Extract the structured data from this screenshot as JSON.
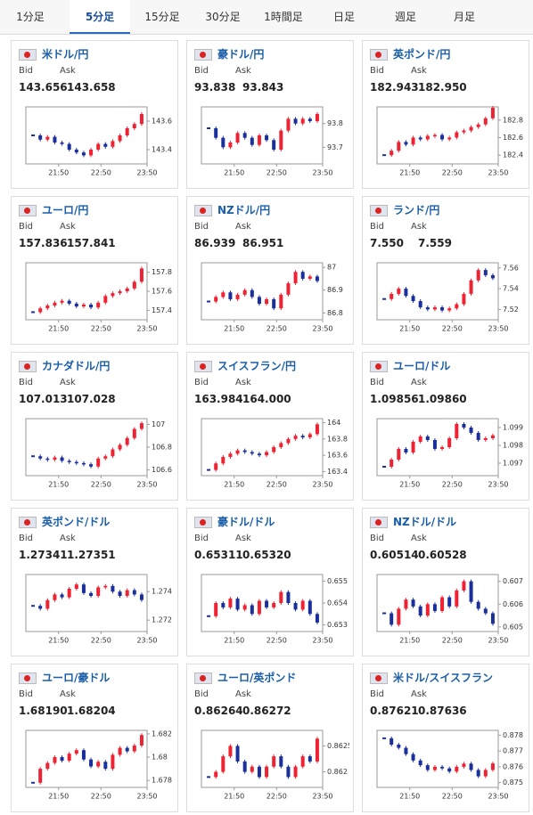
{
  "tabs": [
    "1分足",
    "5分足",
    "15分足",
    "30分足",
    "1時間足",
    "日足",
    "週足",
    "月足"
  ],
  "cards": [
    {
      "name": "米ドル/円",
      "bid_label": "Bid",
      "ask_label": "Ask",
      "bid": "143.656",
      "ask": "143.658",
      "chart_data": {
        "type": "candlestick",
        "x_labels": [
          "21:50",
          "22:50",
          "23:50"
        ],
        "ylim": [
          143.3,
          143.7
        ],
        "yticks": [
          143.4,
          143.6
        ],
        "values": [
          143.5,
          143.47,
          143.49,
          143.45,
          143.44,
          143.4,
          143.38,
          143.36,
          143.4,
          143.44,
          143.42,
          143.46,
          143.5,
          143.55,
          143.58,
          143.65
        ]
      }
    },
    {
      "name": "豪ドル/円",
      "bid_label": "Bid",
      "ask_label": "Ask",
      "bid": "93.838",
      "ask": "93.843",
      "chart_data": {
        "type": "candlestick",
        "x_labels": [
          "21:50",
          "22:50",
          "23:50"
        ],
        "ylim": [
          93.63,
          93.87
        ],
        "yticks": [
          93.7,
          93.8
        ],
        "values": [
          93.78,
          93.74,
          93.7,
          93.72,
          93.76,
          93.74,
          93.71,
          93.75,
          93.73,
          93.69,
          93.77,
          93.82,
          93.8,
          93.82,
          93.81,
          93.84
        ]
      }
    },
    {
      "name": "英ポンド/円",
      "bid_label": "Bid",
      "ask_label": "Ask",
      "bid": "182.943",
      "ask": "182.950",
      "chart_data": {
        "type": "candlestick",
        "x_labels": [
          "21:50",
          "22:50",
          "23:50"
        ],
        "ylim": [
          182.3,
          182.95
        ],
        "yticks": [
          182.4,
          182.6,
          182.8
        ],
        "values": [
          182.4,
          182.45,
          182.55,
          182.52,
          182.6,
          182.58,
          182.62,
          182.63,
          182.58,
          182.6,
          182.66,
          182.68,
          182.72,
          182.75,
          182.82,
          182.94
        ]
      }
    },
    {
      "name": "ユーロ/円",
      "bid_label": "Bid",
      "ask_label": "Ask",
      "bid": "157.836",
      "ask": "157.841",
      "chart_data": {
        "type": "candlestick",
        "x_labels": [
          "21:50",
          "22:50",
          "23:50"
        ],
        "ylim": [
          157.3,
          157.9
        ],
        "yticks": [
          157.4,
          157.6,
          157.8
        ],
        "values": [
          157.38,
          157.42,
          157.45,
          157.48,
          157.5,
          157.47,
          157.44,
          157.46,
          157.43,
          157.48,
          157.55,
          157.58,
          157.6,
          157.63,
          157.7,
          157.84
        ]
      }
    },
    {
      "name": "NZドル/円",
      "bid_label": "Bid",
      "ask_label": "Ask",
      "bid": "86.939",
      "ask": "86.951",
      "chart_data": {
        "type": "candlestick",
        "x_labels": [
          "21:50",
          "22:50",
          "23:50"
        ],
        "ylim": [
          86.77,
          87.02
        ],
        "yticks": [
          86.8,
          86.9,
          87
        ],
        "values": [
          86.85,
          86.87,
          86.89,
          86.86,
          86.88,
          86.9,
          86.87,
          86.84,
          86.86,
          86.82,
          86.88,
          86.93,
          86.98,
          86.95,
          86.96,
          86.94
        ]
      }
    },
    {
      "name": "ランド/円",
      "bid_label": "Bid",
      "ask_label": "Ask",
      "bid": "7.550",
      "ask": "7.559",
      "chart_data": {
        "type": "candlestick",
        "x_labels": [
          "21:50",
          "22:50",
          "23:50"
        ],
        "ylim": [
          7.51,
          7.565
        ],
        "yticks": [
          7.52,
          7.54,
          7.56
        ],
        "values": [
          7.53,
          7.535,
          7.54,
          7.533,
          7.528,
          7.522,
          7.52,
          7.522,
          7.519,
          7.521,
          7.525,
          7.535,
          7.548,
          7.558,
          7.553,
          7.55
        ]
      }
    },
    {
      "name": "カナダドル/円",
      "bid_label": "Bid",
      "ask_label": "Ask",
      "bid": "107.013",
      "ask": "107.028",
      "chart_data": {
        "type": "candlestick",
        "x_labels": [
          "21:50",
          "22:50",
          "23:50"
        ],
        "ylim": [
          106.55,
          107.05
        ],
        "yticks": [
          106.6,
          106.8,
          107
        ],
        "values": [
          106.72,
          106.7,
          106.69,
          106.71,
          106.68,
          106.67,
          106.66,
          106.65,
          106.63,
          106.7,
          106.72,
          106.78,
          106.82,
          106.88,
          106.96,
          107.01
        ]
      }
    },
    {
      "name": "スイスフラン/円",
      "bid_label": "Bid",
      "ask_label": "Ask",
      "bid": "163.984",
      "ask": "164.000",
      "chart_data": {
        "type": "candlestick",
        "x_labels": [
          "21:50",
          "22:50",
          "23:50"
        ],
        "ylim": [
          163.35,
          164.05
        ],
        "yticks": [
          163.4,
          163.6,
          163.8,
          164
        ],
        "values": [
          163.42,
          163.5,
          163.58,
          163.62,
          163.66,
          163.64,
          163.62,
          163.6,
          163.64,
          163.7,
          163.75,
          163.8,
          163.84,
          163.82,
          163.86,
          163.98
        ]
      }
    },
    {
      "name": "ユーロ/ドル",
      "bid_label": "Bid",
      "ask_label": "Ask",
      "bid": "1.09856",
      "ask": "1.09860",
      "chart_data": {
        "type": "candlestick",
        "x_labels": [
          "21:50",
          "22:50",
          "23:50"
        ],
        "ylim": [
          1.0963,
          1.0995
        ],
        "yticks": [
          1.097,
          1.098,
          1.099
        ],
        "values": [
          1.0968,
          1.0972,
          1.0978,
          1.0976,
          1.0982,
          1.0985,
          1.0983,
          1.0978,
          1.0979,
          1.0984,
          1.0992,
          1.099,
          1.0987,
          1.0983,
          1.0984,
          1.09856
        ]
      }
    },
    {
      "name": "英ポンド/ドル",
      "bid_label": "Bid",
      "ask_label": "Ask",
      "bid": "1.27341",
      "ask": "1.27351",
      "chart_data": {
        "type": "candlestick",
        "x_labels": [
          "21:50",
          "22:50",
          "23:50"
        ],
        "ylim": [
          1.2712,
          1.2752
        ],
        "yticks": [
          1.272,
          1.274
        ],
        "values": [
          1.273,
          1.2728,
          1.2734,
          1.2738,
          1.2736,
          1.2742,
          1.2745,
          1.2739,
          1.2737,
          1.2743,
          1.2744,
          1.274,
          1.2737,
          1.2741,
          1.2738,
          1.27341
        ]
      }
    },
    {
      "name": "豪ドル/ドル",
      "bid_label": "Bid",
      "ask_label": "Ask",
      "bid": "0.65311",
      "ask": "0.65320",
      "chart_data": {
        "type": "candlestick",
        "x_labels": [
          "21:50",
          "22:50",
          "23:50"
        ],
        "ylim": [
          0.6527,
          0.6553
        ],
        "yticks": [
          0.653,
          0.654,
          0.655
        ],
        "values": [
          0.6534,
          0.654,
          0.6538,
          0.6542,
          0.6537,
          0.6539,
          0.6535,
          0.6541,
          0.6538,
          0.654,
          0.6545,
          0.654,
          0.6537,
          0.6541,
          0.6535,
          0.65311
        ]
      }
    },
    {
      "name": "NZドル/ドル",
      "bid_label": "Bid",
      "ask_label": "Ask",
      "bid": "0.60514",
      "ask": "0.60528",
      "chart_data": {
        "type": "candlestick",
        "x_labels": [
          "21:50",
          "22:50",
          "23:50"
        ],
        "ylim": [
          0.6048,
          0.6073
        ],
        "yticks": [
          0.605,
          0.606,
          0.607
        ],
        "values": [
          0.6056,
          0.6051,
          0.6058,
          0.6062,
          0.6059,
          0.6055,
          0.606,
          0.6057,
          0.6063,
          0.6059,
          0.6066,
          0.607,
          0.6061,
          0.6058,
          0.6056,
          0.60514
        ]
      }
    },
    {
      "name": "ユーロ/豪ドル",
      "bid_label": "Bid",
      "ask_label": "Ask",
      "bid": "1.68190",
      "ask": "1.68204",
      "chart_data": {
        "type": "candlestick",
        "x_labels": [
          "21:50",
          "22:50",
          "23:50"
        ],
        "ylim": [
          1.6774,
          1.6823
        ],
        "yticks": [
          1.678,
          1.68,
          1.682
        ],
        "values": [
          1.6778,
          1.679,
          1.6795,
          1.68,
          1.6797,
          1.6803,
          1.6806,
          1.6798,
          1.6792,
          1.6796,
          1.679,
          1.6802,
          1.6808,
          1.6805,
          1.681,
          1.6819
        ]
      }
    },
    {
      "name": "ユーロ/英ポンド",
      "bid_label": "Bid",
      "ask_label": "Ask",
      "bid": "0.86264",
      "ask": "0.86272",
      "chart_data": {
        "type": "candlestick",
        "x_labels": [
          "21:50",
          "22:50",
          "23:50"
        ],
        "ylim": [
          0.8617,
          0.8628
        ],
        "yticks": [
          0.862,
          0.8625
        ],
        "values": [
          0.8619,
          0.862,
          0.8623,
          0.8625,
          0.8622,
          0.862,
          0.8621,
          0.8619,
          0.8621,
          0.8623,
          0.8621,
          0.8619,
          0.8621,
          0.8623,
          0.8622,
          0.86264
        ]
      }
    },
    {
      "name": "米ドル/スイスフラン",
      "bid_label": "Bid",
      "ask_label": "Ask",
      "bid": "0.87621",
      "ask": "0.87636",
      "chart_data": {
        "type": "candlestick",
        "x_labels": [
          "21:50",
          "22:50",
          "23:50"
        ],
        "ylim": [
          0.8747,
          0.8783
        ],
        "yticks": [
          0.875,
          0.876,
          0.877,
          0.878
        ],
        "values": [
          0.8778,
          0.8774,
          0.8772,
          0.8768,
          0.8764,
          0.8761,
          0.8758,
          0.876,
          0.8759,
          0.8757,
          0.876,
          0.8762,
          0.8758,
          0.8754,
          0.8758,
          0.87621
        ]
      }
    }
  ]
}
